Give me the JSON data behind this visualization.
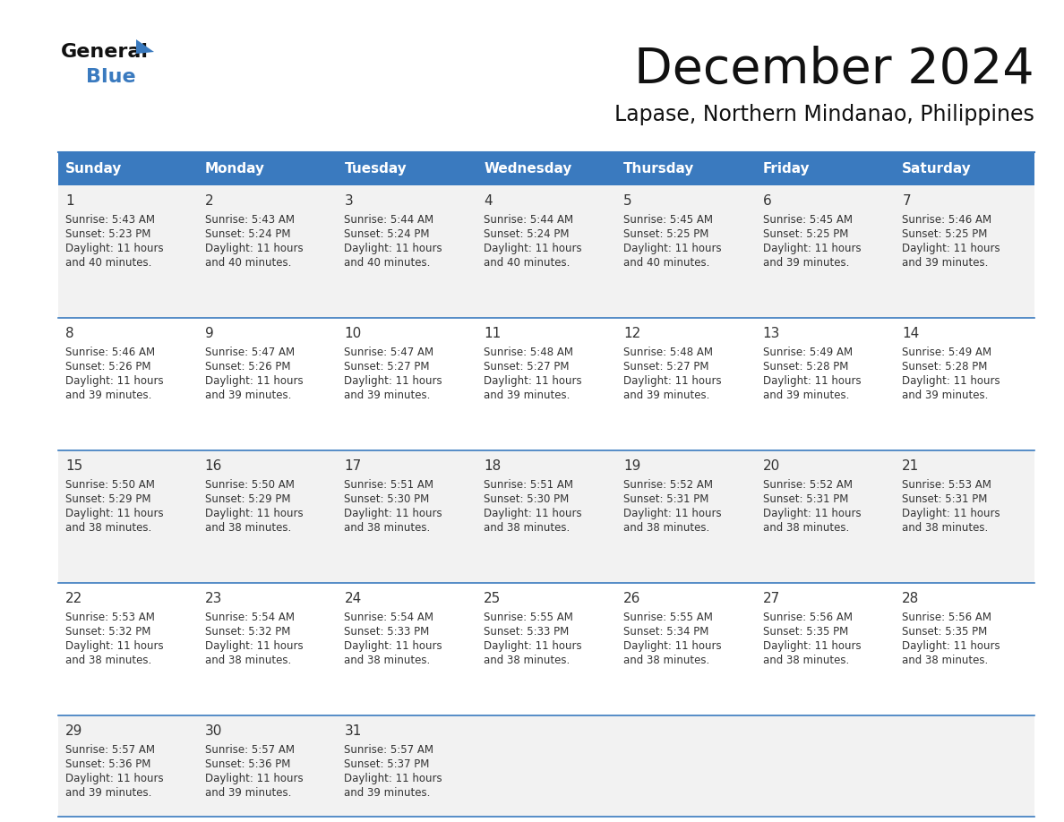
{
  "title": "December 2024",
  "subtitle": "Lapase, Northern Mindanao, Philippines",
  "header_color": "#3a7abf",
  "header_text_color": "#ffffff",
  "row_bg_even": "#f2f2f2",
  "row_bg_odd": "#ffffff",
  "border_color": "#3a7abf",
  "sep_line_color": "#3a7abf",
  "text_color": "#333333",
  "days_of_week": [
    "Sunday",
    "Monday",
    "Tuesday",
    "Wednesday",
    "Thursday",
    "Friday",
    "Saturday"
  ],
  "calendar_data": [
    [
      {
        "day": 1,
        "sunrise": "5:43 AM",
        "sunset": "5:23 PM",
        "daylight_hours": 11,
        "daylight_minutes": 40
      },
      {
        "day": 2,
        "sunrise": "5:43 AM",
        "sunset": "5:24 PM",
        "daylight_hours": 11,
        "daylight_minutes": 40
      },
      {
        "day": 3,
        "sunrise": "5:44 AM",
        "sunset": "5:24 PM",
        "daylight_hours": 11,
        "daylight_minutes": 40
      },
      {
        "day": 4,
        "sunrise": "5:44 AM",
        "sunset": "5:24 PM",
        "daylight_hours": 11,
        "daylight_minutes": 40
      },
      {
        "day": 5,
        "sunrise": "5:45 AM",
        "sunset": "5:25 PM",
        "daylight_hours": 11,
        "daylight_minutes": 40
      },
      {
        "day": 6,
        "sunrise": "5:45 AM",
        "sunset": "5:25 PM",
        "daylight_hours": 11,
        "daylight_minutes": 39
      },
      {
        "day": 7,
        "sunrise": "5:46 AM",
        "sunset": "5:25 PM",
        "daylight_hours": 11,
        "daylight_minutes": 39
      }
    ],
    [
      {
        "day": 8,
        "sunrise": "5:46 AM",
        "sunset": "5:26 PM",
        "daylight_hours": 11,
        "daylight_minutes": 39
      },
      {
        "day": 9,
        "sunrise": "5:47 AM",
        "sunset": "5:26 PM",
        "daylight_hours": 11,
        "daylight_minutes": 39
      },
      {
        "day": 10,
        "sunrise": "5:47 AM",
        "sunset": "5:27 PM",
        "daylight_hours": 11,
        "daylight_minutes": 39
      },
      {
        "day": 11,
        "sunrise": "5:48 AM",
        "sunset": "5:27 PM",
        "daylight_hours": 11,
        "daylight_minutes": 39
      },
      {
        "day": 12,
        "sunrise": "5:48 AM",
        "sunset": "5:27 PM",
        "daylight_hours": 11,
        "daylight_minutes": 39
      },
      {
        "day": 13,
        "sunrise": "5:49 AM",
        "sunset": "5:28 PM",
        "daylight_hours": 11,
        "daylight_minutes": 39
      },
      {
        "day": 14,
        "sunrise": "5:49 AM",
        "sunset": "5:28 PM",
        "daylight_hours": 11,
        "daylight_minutes": 39
      }
    ],
    [
      {
        "day": 15,
        "sunrise": "5:50 AM",
        "sunset": "5:29 PM",
        "daylight_hours": 11,
        "daylight_minutes": 38
      },
      {
        "day": 16,
        "sunrise": "5:50 AM",
        "sunset": "5:29 PM",
        "daylight_hours": 11,
        "daylight_minutes": 38
      },
      {
        "day": 17,
        "sunrise": "5:51 AM",
        "sunset": "5:30 PM",
        "daylight_hours": 11,
        "daylight_minutes": 38
      },
      {
        "day": 18,
        "sunrise": "5:51 AM",
        "sunset": "5:30 PM",
        "daylight_hours": 11,
        "daylight_minutes": 38
      },
      {
        "day": 19,
        "sunrise": "5:52 AM",
        "sunset": "5:31 PM",
        "daylight_hours": 11,
        "daylight_minutes": 38
      },
      {
        "day": 20,
        "sunrise": "5:52 AM",
        "sunset": "5:31 PM",
        "daylight_hours": 11,
        "daylight_minutes": 38
      },
      {
        "day": 21,
        "sunrise": "5:53 AM",
        "sunset": "5:31 PM",
        "daylight_hours": 11,
        "daylight_minutes": 38
      }
    ],
    [
      {
        "day": 22,
        "sunrise": "5:53 AM",
        "sunset": "5:32 PM",
        "daylight_hours": 11,
        "daylight_minutes": 38
      },
      {
        "day": 23,
        "sunrise": "5:54 AM",
        "sunset": "5:32 PM",
        "daylight_hours": 11,
        "daylight_minutes": 38
      },
      {
        "day": 24,
        "sunrise": "5:54 AM",
        "sunset": "5:33 PM",
        "daylight_hours": 11,
        "daylight_minutes": 38
      },
      {
        "day": 25,
        "sunrise": "5:55 AM",
        "sunset": "5:33 PM",
        "daylight_hours": 11,
        "daylight_minutes": 38
      },
      {
        "day": 26,
        "sunrise": "5:55 AM",
        "sunset": "5:34 PM",
        "daylight_hours": 11,
        "daylight_minutes": 38
      },
      {
        "day": 27,
        "sunrise": "5:56 AM",
        "sunset": "5:35 PM",
        "daylight_hours": 11,
        "daylight_minutes": 38
      },
      {
        "day": 28,
        "sunrise": "5:56 AM",
        "sunset": "5:35 PM",
        "daylight_hours": 11,
        "daylight_minutes": 38
      }
    ],
    [
      {
        "day": 29,
        "sunrise": "5:57 AM",
        "sunset": "5:36 PM",
        "daylight_hours": 11,
        "daylight_minutes": 39
      },
      {
        "day": 30,
        "sunrise": "5:57 AM",
        "sunset": "5:36 PM",
        "daylight_hours": 11,
        "daylight_minutes": 39
      },
      {
        "day": 31,
        "sunrise": "5:57 AM",
        "sunset": "5:37 PM",
        "daylight_hours": 11,
        "daylight_minutes": 39
      },
      null,
      null,
      null,
      null
    ]
  ]
}
